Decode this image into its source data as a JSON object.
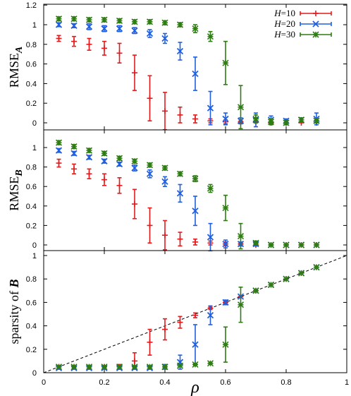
{
  "chart_data": [
    {
      "type": "scatter",
      "ylabel": "RMSE_A",
      "ylabel_main": "RMSE",
      "ylabel_sub": "A",
      "x": [
        0.05,
        0.1,
        0.15,
        0.2,
        0.25,
        0.3,
        0.35,
        0.4,
        0.45,
        0.5,
        0.55,
        0.6,
        0.65,
        0.7,
        0.75,
        0.8,
        0.85,
        0.9
      ],
      "xlim": [
        0,
        1
      ],
      "ylim": [
        0,
        1.2
      ],
      "yticks": [
        "0",
        "0.2",
        "0.4",
        "0.6",
        "0.8",
        "1",
        "1.2"
      ],
      "legend_position": "top-right",
      "series": [
        {
          "name": "H=10",
          "name_main": "H",
          "name_val": "=10",
          "color": "#e41a1c",
          "marker": "plus",
          "values": [
            0.86,
            0.83,
            0.8,
            0.76,
            0.71,
            0.51,
            0.25,
            0.12,
            0.08,
            0.04,
            0.02,
            0.01,
            0.01,
            0.01,
            0.0,
            0.0,
            0.0,
            0.0
          ],
          "errors": [
            0.03,
            0.05,
            0.06,
            0.07,
            0.1,
            0.18,
            0.23,
            0.19,
            0.08,
            0.04,
            0.02,
            0.02,
            0.01,
            0.01,
            0.0,
            0.0,
            0.0,
            0.0
          ]
        },
        {
          "name": "H=20",
          "name_main": "H",
          "name_val": "=20",
          "color": "#1f5fe0",
          "marker": "cross",
          "values": [
            1.0,
            0.99,
            0.98,
            0.96,
            0.96,
            0.94,
            0.91,
            0.86,
            0.73,
            0.5,
            0.15,
            0.04,
            0.02,
            0.03,
            0.03,
            0.02,
            0.03,
            0.04
          ],
          "errors": [
            0.02,
            0.02,
            0.03,
            0.03,
            0.03,
            0.03,
            0.04,
            0.05,
            0.09,
            0.17,
            0.17,
            0.06,
            0.03,
            0.07,
            0.04,
            0.02,
            0.02,
            0.06
          ]
        },
        {
          "name": "H=30",
          "name_main": "H",
          "name_val": "=30",
          "color": "#2e7d12",
          "marker": "star",
          "values": [
            1.06,
            1.06,
            1.05,
            1.05,
            1.04,
            1.03,
            1.03,
            1.02,
            1.0,
            0.96,
            0.88,
            0.61,
            0.16,
            0.04,
            0.01,
            0.0,
            0.03,
            0.02
          ],
          "errors": [
            0.02,
            0.02,
            0.02,
            0.02,
            0.02,
            0.02,
            0.02,
            0.02,
            0.02,
            0.04,
            0.05,
            0.22,
            0.22,
            0.04,
            0.03,
            0.02,
            0.02,
            0.02
          ]
        }
      ]
    },
    {
      "type": "scatter",
      "ylabel": "RMSE_B",
      "ylabel_main": "RMSE",
      "ylabel_sub": "B",
      "x": [
        0.05,
        0.1,
        0.15,
        0.2,
        0.25,
        0.3,
        0.35,
        0.4,
        0.45,
        0.5,
        0.55,
        0.6,
        0.65,
        0.7,
        0.75,
        0.8,
        0.85,
        0.9
      ],
      "xlim": [
        0,
        1
      ],
      "ylim": [
        -0.05,
        1.2
      ],
      "yticks": [
        "0",
        "0.2",
        "0.4",
        "0.6",
        "0.8",
        "1"
      ],
      "series": [
        {
          "name": "H=10",
          "color": "#e41a1c",
          "marker": "plus",
          "values": [
            0.84,
            0.78,
            0.73,
            0.67,
            0.61,
            0.42,
            0.2,
            0.1,
            0.06,
            0.03,
            0.02,
            0.01,
            0.01,
            0.0,
            0.0,
            0.0,
            0.0,
            0.0
          ],
          "errors": [
            0.04,
            0.05,
            0.05,
            0.06,
            0.08,
            0.15,
            0.18,
            0.15,
            0.07,
            0.03,
            0.02,
            0.02,
            0.01,
            0.01,
            0.0,
            0.0,
            0.0,
            0.0
          ]
        },
        {
          "name": "H=20",
          "color": "#1f5fe0",
          "marker": "cross",
          "values": [
            0.97,
            0.94,
            0.9,
            0.86,
            0.83,
            0.79,
            0.73,
            0.65,
            0.53,
            0.35,
            0.08,
            0.01,
            0.01,
            0.01,
            0.0,
            0.0,
            0.0,
            0.0
          ],
          "errors": [
            0.02,
            0.02,
            0.02,
            0.02,
            0.02,
            0.03,
            0.04,
            0.05,
            0.09,
            0.15,
            0.14,
            0.04,
            0.02,
            0.02,
            0.01,
            0.0,
            0.0,
            0.0
          ],
          "note": ""
        },
        {
          "name": "H=30",
          "color": "#2e7d12",
          "marker": "star",
          "values": [
            1.05,
            1.01,
            0.97,
            0.94,
            0.89,
            0.86,
            0.82,
            0.79,
            0.73,
            0.68,
            0.58,
            0.38,
            0.09,
            0.02,
            0.0,
            0.0,
            0.0,
            0.0
          ],
          "errors": [
            0.02,
            0.02,
            0.02,
            0.02,
            0.02,
            0.02,
            0.02,
            0.02,
            0.02,
            0.03,
            0.04,
            0.13,
            0.13,
            0.02,
            0.01,
            0.0,
            0.0,
            0.0
          ]
        }
      ]
    },
    {
      "type": "scatter",
      "ylabel": "sparsity of B",
      "ylabel_main": "sparsity of ",
      "ylabel_bold": "B",
      "xlabel": "ρ",
      "x": [
        0.05,
        0.1,
        0.15,
        0.2,
        0.25,
        0.3,
        0.35,
        0.4,
        0.45,
        0.5,
        0.55,
        0.6,
        0.65,
        0.7,
        0.75,
        0.8,
        0.85,
        0.9
      ],
      "xlim": [
        0,
        1
      ],
      "ylim": [
        0,
        1.04
      ],
      "xticks": [
        "0",
        "0.2",
        "0.4",
        "0.6",
        "0.8",
        "1"
      ],
      "yticks": [
        "0",
        "0.2",
        "0.4",
        "0.6",
        "0.8",
        "1"
      ],
      "reference_line": "y = x (dashed)",
      "series": [
        {
          "name": "H=10",
          "color": "#e41a1c",
          "marker": "plus",
          "values": [
            0.05,
            0.05,
            0.05,
            0.05,
            0.05,
            0.1,
            0.26,
            0.37,
            0.43,
            0.49,
            0.55,
            0.6,
            0.65,
            0.7,
            0.75,
            0.8,
            0.85,
            0.9
          ],
          "errors": [
            0.01,
            0.01,
            0.01,
            0.01,
            0.02,
            0.07,
            0.11,
            0.09,
            0.05,
            0.02,
            0.01,
            0.01,
            0.0,
            0.0,
            0.0,
            0.0,
            0.0,
            0.0
          ]
        },
        {
          "name": "H=20",
          "color": "#1f5fe0",
          "marker": "cross",
          "values": [
            0.04,
            0.04,
            0.04,
            0.04,
            0.04,
            0.04,
            0.04,
            0.05,
            0.09,
            0.24,
            0.49,
            0.6,
            0.65,
            0.7,
            0.75,
            0.8,
            0.85,
            0.9
          ],
          "errors": [
            0.01,
            0.01,
            0.01,
            0.01,
            0.01,
            0.01,
            0.01,
            0.02,
            0.06,
            0.17,
            0.08,
            0.02,
            0.0,
            0.0,
            0.0,
            0.0,
            0.0,
            0.0
          ]
        },
        {
          "name": "H=30",
          "color": "#2e7d12",
          "marker": "star",
          "values": [
            0.05,
            0.05,
            0.05,
            0.05,
            0.05,
            0.05,
            0.05,
            0.05,
            0.06,
            0.07,
            0.08,
            0.24,
            0.58,
            0.7,
            0.75,
            0.8,
            0.85,
            0.9
          ],
          "errors": [
            0.01,
            0.01,
            0.01,
            0.01,
            0.01,
            0.01,
            0.01,
            0.01,
            0.01,
            0.01,
            0.01,
            0.15,
            0.15,
            0.01,
            0.0,
            0.0,
            0.0,
            0.0
          ]
        }
      ]
    }
  ]
}
